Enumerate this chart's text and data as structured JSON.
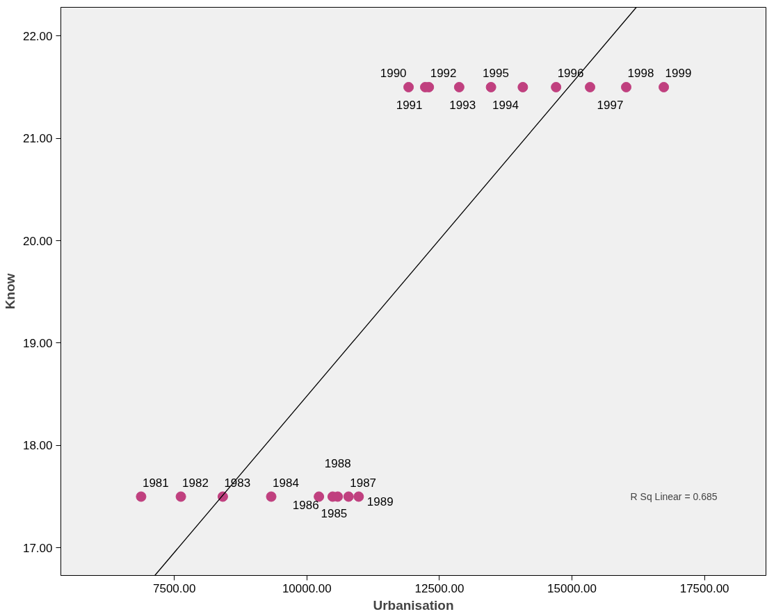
{
  "chart_data": {
    "type": "scatter",
    "xlabel": "Urbanisation",
    "ylabel": "Know",
    "xlim": [
      5359,
      18659
    ],
    "ylim": [
      16.73,
      22.28
    ],
    "xticks": [
      {
        "value": 7500,
        "label": "7500.00"
      },
      {
        "value": 10000,
        "label": "10000.00"
      },
      {
        "value": 12500,
        "label": "12500.00"
      },
      {
        "value": 15000,
        "label": "15000.00"
      },
      {
        "value": 17500,
        "label": "17500.00"
      }
    ],
    "yticks": [
      {
        "value": 17,
        "label": "17.00"
      },
      {
        "value": 18,
        "label": "18.00"
      },
      {
        "value": 19,
        "label": "19.00"
      },
      {
        "value": 20,
        "label": "20.00"
      },
      {
        "value": 21,
        "label": "21.00"
      },
      {
        "value": 22,
        "label": "22.00"
      }
    ],
    "grid": false,
    "series": [
      {
        "marker": "circle",
        "color": "#c0407f",
        "x": [
          6873,
          7623,
          8414,
          9327,
          10486,
          10227,
          10786,
          10582,
          10977,
          11918,
          12232,
          12300,
          12873,
          14073,
          13473,
          14700,
          15341,
          16023,
          16732
        ],
        "values": [
          17.5,
          17.5,
          17.5,
          17.5,
          17.5,
          17.5,
          17.5,
          17.5,
          17.5,
          21.5,
          21.5,
          21.5,
          21.5,
          21.5,
          21.5,
          21.5,
          21.5,
          21.5,
          21.5
        ]
      },
      {
        "type": "line",
        "color": "#000000",
        "x": [
          7132,
          16214
        ],
        "values": [
          16.73,
          22.28
        ]
      }
    ],
    "annotations": [
      {
        "text": "1981",
        "x": 6873,
        "y": 17.5
      },
      {
        "text": "1982",
        "x": 7623,
        "y": 17.5
      },
      {
        "text": "1983",
        "x": 8414,
        "y": 17.5
      },
      {
        "text": "1984",
        "x": 9327,
        "y": 17.5
      },
      {
        "text": "1985",
        "x": 10486,
        "y": 17.5
      },
      {
        "text": "1986",
        "x": 10227,
        "y": 17.5
      },
      {
        "text": "1987",
        "x": 10786,
        "y": 17.5
      },
      {
        "text": "1988",
        "x": 10582,
        "y": 17.5
      },
      {
        "text": "1989",
        "x": 10977,
        "y": 17.5
      },
      {
        "text": "1990",
        "x": 11918,
        "y": 21.5
      },
      {
        "text": "1991",
        "x": 12232,
        "y": 21.5
      },
      {
        "text": "1992",
        "x": 12300,
        "y": 21.5
      },
      {
        "text": "1993",
        "x": 12873,
        "y": 21.5
      },
      {
        "text": "1994",
        "x": 14073,
        "y": 21.5
      },
      {
        "text": "1995",
        "x": 13473,
        "y": 21.5
      },
      {
        "text": "1996",
        "x": 14700,
        "y": 21.5
      },
      {
        "text": "1997",
        "x": 15341,
        "y": 21.5
      },
      {
        "text": "1998",
        "x": 16023,
        "y": 21.5
      },
      {
        "text": "1999",
        "x": 16732,
        "y": 21.5
      },
      "R Sq Linear = 0.685"
    ]
  }
}
